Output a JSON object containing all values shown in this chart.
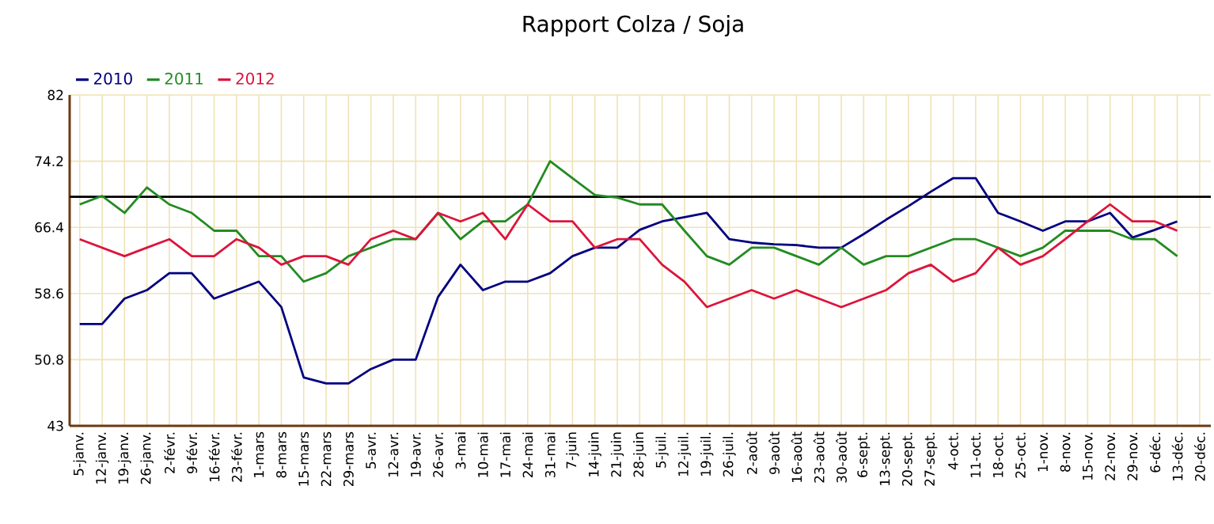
{
  "chart_data": {
    "type": "line",
    "title": "Rapport Colza / Soja",
    "categories": [
      "5-janv.",
      "12-janv.",
      "19-janv.",
      "26-janv.",
      "2-févr.",
      "9-févr.",
      "16-févr.",
      "23-févr.",
      "1-mars",
      "8-mars",
      "15-mars",
      "22-mars",
      "29-mars",
      "5-avr.",
      "12-avr.",
      "19-avr.",
      "26-avr.",
      "3-mai",
      "10-mai",
      "17-mai",
      "24-mai",
      "31-mai",
      "7-juin",
      "14-juin",
      "21-juin",
      "28-juin",
      "5-juil.",
      "12-juil.",
      "19-juil.",
      "26-juil.",
      "2-août",
      "9-août",
      "16-août",
      "23-août",
      "30-août",
      "6-sept.",
      "13-sept.",
      "20-sept.",
      "27-sept.",
      "4-oct.",
      "11-oct.",
      "18-oct.",
      "25-oct.",
      "1-nov.",
      "8-nov.",
      "15-nov.",
      "22-nov.",
      "29-nov.",
      "6-déc.",
      "13-déc.",
      "20-déc."
    ],
    "series": [
      {
        "name": "2010",
        "color": "#000080",
        "values": [
          55.0,
          55.0,
          58.0,
          59.0,
          61.0,
          61.0,
          58.0,
          59.0,
          60.0,
          57.0,
          48.7,
          48.0,
          48.0,
          49.7,
          50.8,
          50.8,
          58.2,
          62.0,
          59.0,
          60.0,
          60.0,
          61.0,
          63.0,
          64.0,
          64.0,
          66.1,
          67.1,
          67.6,
          68.1,
          65.0,
          64.6,
          64.4,
          64.3,
          64.0,
          64.0,
          65.6,
          67.3,
          68.9,
          70.6,
          72.2,
          72.2,
          68.1,
          67.1,
          66.0,
          67.1,
          67.1,
          68.1,
          65.2,
          66.1,
          67.1,
          null
        ]
      },
      {
        "name": "2011",
        "color": "#228b22",
        "values": [
          69.1,
          70.1,
          68.1,
          71.1,
          69.1,
          68.1,
          66.0,
          66.0,
          63.0,
          63.0,
          60.0,
          61.0,
          63.0,
          64.0,
          65.0,
          65.0,
          68.1,
          65.0,
          67.1,
          67.1,
          69.1,
          74.2,
          72.2,
          70.2,
          69.9,
          69.1,
          69.1,
          66.0,
          63.0,
          62.0,
          64.0,
          64.0,
          63.0,
          62.0,
          64.0,
          62.0,
          63.0,
          63.0,
          64.0,
          65.0,
          65.0,
          64.0,
          63.0,
          64.0,
          66.0,
          66.0,
          66.0,
          65.0,
          65.0,
          63.0,
          null
        ]
      },
      {
        "name": "2012",
        "color": "#dc143c",
        "values": [
          65.0,
          64.0,
          63.0,
          64.0,
          65.0,
          63.0,
          63.0,
          65.0,
          64.0,
          62.0,
          63.0,
          63.0,
          62.0,
          65.0,
          66.0,
          65.0,
          68.1,
          67.1,
          68.1,
          65.0,
          69.1,
          67.1,
          67.1,
          64.0,
          65.0,
          65.0,
          62.0,
          60.0,
          57.0,
          58.0,
          59.0,
          58.0,
          59.0,
          58.0,
          57.0,
          58.0,
          59.0,
          61.0,
          62.0,
          60.0,
          61.0,
          64.0,
          62.0,
          63.0,
          65.0,
          67.1,
          69.1,
          67.1,
          67.1,
          66.0,
          null
        ]
      }
    ],
    "ylim": [
      43,
      82
    ],
    "yticks": [
      43,
      50.8,
      58.6,
      66.4,
      74.2,
      82
    ],
    "grid": true,
    "legend": "top left",
    "marker": "none",
    "line_style": "solid",
    "ref_lines": [
      {
        "axis": "y",
        "value": 70,
        "color": "#000000"
      }
    ]
  }
}
